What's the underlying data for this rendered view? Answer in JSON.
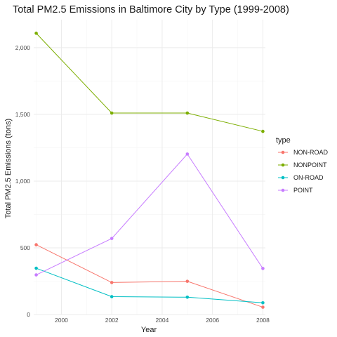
{
  "chart_data": {
    "type": "line",
    "title": "Total PM2.5 Emissions in Baltimore City by Type (1999-2008)",
    "xlabel": "Year",
    "ylabel": "Total PM2.5 Emissions (tons)",
    "x": [
      1999,
      2002,
      2005,
      2008
    ],
    "xlim": [
      1998.9,
      2008.1
    ],
    "ylim": [
      0,
      2210
    ],
    "x_ticks": [
      2000,
      2002,
      2004,
      2006,
      2008
    ],
    "x_tick_labels": [
      "2000",
      "2002",
      "2004",
      "2006",
      "2008"
    ],
    "y_ticks": [
      0,
      500,
      1000,
      1500,
      2000
    ],
    "y_tick_labels": [
      "0",
      "500",
      "1,000",
      "1,500",
      "2,000"
    ],
    "grid": true,
    "legend_title": "type",
    "legend_position": "right",
    "series": [
      {
        "name": "NON-ROAD",
        "color": "#F8766D",
        "values": [
          523,
          240,
          249,
          55
        ]
      },
      {
        "name": "NONPOINT",
        "color": "#7CAE00",
        "values": [
          2108,
          1510,
          1510,
          1373
        ]
      },
      {
        "name": "ON-ROAD",
        "color": "#00BFC4",
        "values": [
          347,
          134,
          130,
          88
        ]
      },
      {
        "name": "POINT",
        "color": "#C77CFF",
        "values": [
          297,
          570,
          1203,
          345
        ]
      }
    ]
  }
}
